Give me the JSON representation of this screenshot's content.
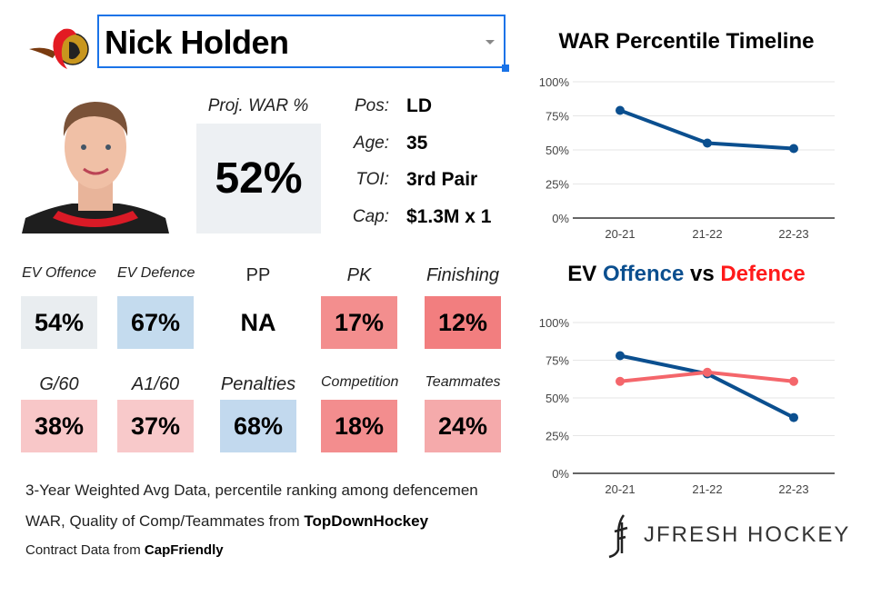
{
  "player": {
    "name": "Nick Holden",
    "proj_war_label": "Proj. WAR %",
    "proj_war": "52%"
  },
  "info": [
    {
      "label": "Pos:",
      "value": "LD"
    },
    {
      "label": "Age:",
      "value": "35"
    },
    {
      "label": "TOI:",
      "value": "3rd Pair"
    },
    {
      "label": "Cap:",
      "value": "$1.3M x 1"
    }
  ],
  "tiles": [
    {
      "label": "EV Offence",
      "value": "54%",
      "color": "#e9edf0"
    },
    {
      "label": "EV Defence",
      "value": "67%",
      "color": "#c4dbee"
    },
    {
      "label": "PP",
      "value": "NA",
      "color": "#ffffff"
    },
    {
      "label": "PK",
      "value": "17%",
      "color": "#f38e8e"
    },
    {
      "label": "Finishing",
      "value": "12%",
      "color": "#f27e7f"
    },
    {
      "label": "G/60",
      "value": "38%",
      "color": "#f8c7c8"
    },
    {
      "label": "A1/60",
      "value": "37%",
      "color": "#f8c9ca"
    },
    {
      "label": "Penalties",
      "value": "68%",
      "color": "#c2d9ee"
    },
    {
      "label": "Competition",
      "value": "18%",
      "color": "#f38d8e"
    },
    {
      "label": "Teammates",
      "value": "24%",
      "color": "#f5aaab"
    }
  ],
  "footer": {
    "line1": "3-Year Weighted Avg Data, percentile ranking among defencemen",
    "line2_prefix": "WAR, Quality of Comp/Teammates from ",
    "line2_bold": "TopDownHockey",
    "line3_prefix": "Contract Data from ",
    "line3_bold": "CapFriendly"
  },
  "brand": "JFRESH HOCKEY",
  "chart_data": [
    {
      "type": "line",
      "title": "WAR Percentile Timeline",
      "categories": [
        "20-21",
        "21-22",
        "22-23"
      ],
      "series": [
        {
          "values": [
            79,
            55,
            51
          ],
          "color": "#0b4f8f"
        }
      ],
      "ylim": [
        0,
        100
      ],
      "yticks": [
        "0%",
        "25%",
        "50%",
        "75%",
        "100%"
      ],
      "grid": true
    },
    {
      "type": "line",
      "title_parts": [
        {
          "text": "EV ",
          "color": "#000000"
        },
        {
          "text": "Offence",
          "color": "#0b4f8f"
        },
        {
          "text": " vs ",
          "color": "#000000"
        },
        {
          "text": "Defence",
          "color": "#ff1a1a"
        }
      ],
      "categories": [
        "20-21",
        "21-22",
        "22-23"
      ],
      "series": [
        {
          "values": [
            78,
            66,
            37
          ],
          "color": "#0b4f8f"
        },
        {
          "values": [
            61,
            67,
            61
          ],
          "color": "#f4666b"
        }
      ],
      "ylim": [
        0,
        100
      ],
      "yticks": [
        "0%",
        "25%",
        "50%",
        "75%",
        "100%"
      ],
      "grid": true
    }
  ]
}
